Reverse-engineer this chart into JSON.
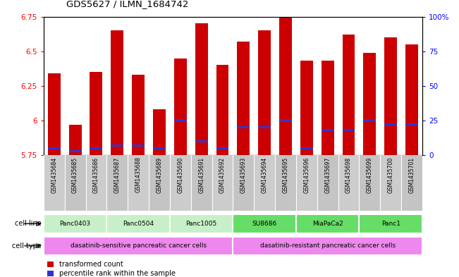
{
  "title": "GDS5627 / ILMN_1684742",
  "samples": [
    "GSM1435684",
    "GSM1435685",
    "GSM1435686",
    "GSM1435687",
    "GSM1435688",
    "GSM1435689",
    "GSM1435690",
    "GSM1435691",
    "GSM1435692",
    "GSM1435693",
    "GSM1435694",
    "GSM1435695",
    "GSM1435696",
    "GSM1435697",
    "GSM1435698",
    "GSM1435699",
    "GSM1435700",
    "GSM1435701"
  ],
  "red_values": [
    6.34,
    5.97,
    6.35,
    6.65,
    6.33,
    6.08,
    6.45,
    6.7,
    6.4,
    6.57,
    6.65,
    6.75,
    6.43,
    6.43,
    6.62,
    6.49,
    6.6,
    6.55
  ],
  "blue_percentiles": [
    5,
    3,
    5,
    7,
    7,
    5,
    25,
    10,
    5,
    20,
    20,
    25,
    5,
    18,
    18,
    25,
    22,
    22
  ],
  "y_min": 5.75,
  "y_max": 6.75,
  "y_ticks": [
    5.75,
    6.0,
    6.25,
    6.5,
    6.75
  ],
  "y_tick_labels": [
    "5.75",
    "6",
    "6.25",
    "6.5",
    "6.75"
  ],
  "right_y_ticks": [
    0,
    25,
    50,
    75,
    100
  ],
  "right_y_tick_labels": [
    "0",
    "25",
    "50",
    "75",
    "100%"
  ],
  "cell_lines": [
    {
      "label": "Panc0403",
      "start": 0,
      "end": 2
    },
    {
      "label": "Panc0504",
      "start": 3,
      "end": 5
    },
    {
      "label": "Panc1005",
      "start": 6,
      "end": 8
    },
    {
      "label": "SU8686",
      "start": 9,
      "end": 11
    },
    {
      "label": "MiaPaCa2",
      "start": 12,
      "end": 14
    },
    {
      "label": "Panc1",
      "start": 15,
      "end": 17
    }
  ],
  "cell_line_colors_sensitive": [
    "#d0f0d0",
    "#d0f0d0",
    "#d0f0d0"
  ],
  "cell_line_colors_resistant": [
    "#66dd66",
    "#66dd66",
    "#66dd66"
  ],
  "bar_color": "#cc0000",
  "blue_color": "#3333cc",
  "bar_width": 0.6,
  "cell_type_color": "#ee88ee",
  "cell_line_bg": "#cccccc",
  "sample_label_bg": "#cccccc"
}
